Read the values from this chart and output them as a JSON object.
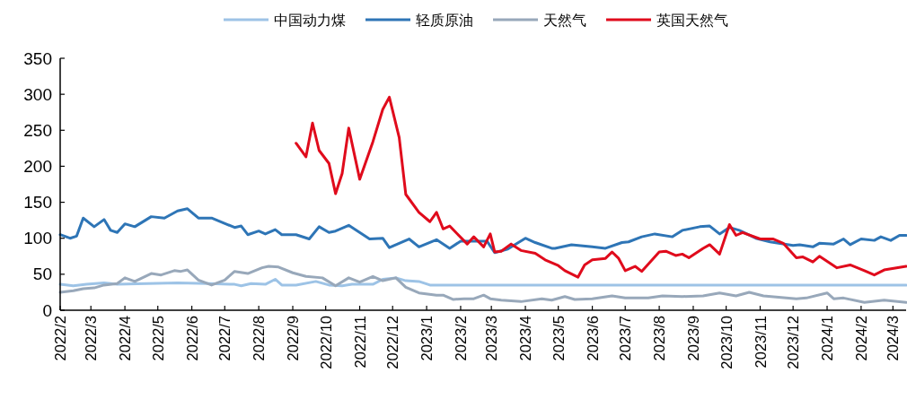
{
  "chart_data": {
    "type": "line",
    "legend": "top",
    "grid": false,
    "marker": "none",
    "line_style": "solid",
    "xlim": [
      "2022-02-01",
      "2024-03-13"
    ],
    "ylim": [
      0,
      350
    ],
    "yticks": [
      0,
      50,
      100,
      150,
      200,
      250,
      300,
      350
    ],
    "xticks": [
      {
        "value": "2022-02",
        "label": "2022/2"
      },
      {
        "value": "2022-03",
        "label": "2022/3"
      },
      {
        "value": "2022-04",
        "label": "2022/4"
      },
      {
        "value": "2022-05",
        "label": "2022/5"
      },
      {
        "value": "2022-06",
        "label": "2022/6"
      },
      {
        "value": "2022-07",
        "label": "2022/7"
      },
      {
        "value": "2022-08",
        "label": "2022/8"
      },
      {
        "value": "2022-09",
        "label": "2022/9"
      },
      {
        "value": "2022-10",
        "label": "2022/10"
      },
      {
        "value": "2022-11",
        "label": "2022/11"
      },
      {
        "value": "2022-12",
        "label": "2022/12"
      },
      {
        "value": "2023-01",
        "label": "2023/1"
      },
      {
        "value": "2023-02",
        "label": "2023/2"
      },
      {
        "value": "2023-03",
        "label": "2023/3"
      },
      {
        "value": "2023-04",
        "label": "2023/4"
      },
      {
        "value": "2023-05",
        "label": "2023/5"
      },
      {
        "value": "2023-06",
        "label": "2023/6"
      },
      {
        "value": "2023-07",
        "label": "2023/7"
      },
      {
        "value": "2023-08",
        "label": "2023/8"
      },
      {
        "value": "2023-09",
        "label": "2023/9"
      },
      {
        "value": "2023-10",
        "label": "2023/10"
      },
      {
        "value": "2023-11",
        "label": "2023/11"
      },
      {
        "value": "2023-12",
        "label": "2023/12"
      },
      {
        "value": "2024-01",
        "label": "2024/1"
      },
      {
        "value": "2024-02",
        "label": "2024/2"
      },
      {
        "value": "2024-03",
        "label": "2024/3"
      }
    ],
    "series": [
      {
        "name": "中国动力煤",
        "color": "#9dc3e6",
        "x": [
          "2022-02-01",
          "2022-02-13",
          "2022-02-25",
          "2022-03-13",
          "2022-03-25",
          "2022-05-19",
          "2022-06-16",
          "2022-07-10",
          "2022-07-16",
          "2022-07-25",
          "2022-08-07",
          "2022-08-16",
          "2022-08-22",
          "2022-09-04",
          "2022-09-22",
          "2022-10-04",
          "2022-10-16",
          "2022-10-25",
          "2022-11-13",
          "2022-11-22",
          "2022-12-04",
          "2022-12-13",
          "2022-12-25",
          "2023-01-04",
          "2024-03-13"
        ],
        "values": [
          36,
          34,
          36,
          38,
          36,
          38,
          37,
          36,
          34,
          37,
          36,
          43,
          35,
          35,
          40,
          35,
          34,
          36,
          36,
          43,
          45,
          41,
          40,
          35,
          35
        ]
      },
      {
        "name": "轻质原油",
        "color": "#2e75b6",
        "x": [
          "2022-02-01",
          "2022-02-10",
          "2022-02-16",
          "2022-02-22",
          "2022-03-04",
          "2022-03-13",
          "2022-03-19",
          "2022-03-25",
          "2022-04-01",
          "2022-04-10",
          "2022-04-25",
          "2022-05-07",
          "2022-05-19",
          "2022-05-28",
          "2022-06-07",
          "2022-06-19",
          "2022-07-10",
          "2022-07-16",
          "2022-07-22",
          "2022-08-01",
          "2022-08-07",
          "2022-08-16",
          "2022-08-22",
          "2022-09-04",
          "2022-09-16",
          "2022-09-25",
          "2022-10-04",
          "2022-10-10",
          "2022-10-22",
          "2022-11-10",
          "2022-11-22",
          "2022-11-28",
          "2022-12-16",
          "2022-12-25",
          "2023-01-10",
          "2023-01-22",
          "2023-02-01",
          "2023-02-25",
          "2023-03-04",
          "2023-03-16",
          "2023-04-01",
          "2023-04-10",
          "2023-04-25",
          "2023-04-28",
          "2023-05-13",
          "2023-06-01",
          "2023-06-13",
          "2023-06-28",
          "2023-07-04",
          "2023-07-16",
          "2023-07-28",
          "2023-08-13",
          "2023-08-22",
          "2023-09-07",
          "2023-09-16",
          "2023-09-25",
          "2023-10-04",
          "2023-10-13",
          "2023-10-28",
          "2023-11-10",
          "2023-12-01",
          "2023-12-07",
          "2023-12-19",
          "2023-12-25",
          "2024-01-07",
          "2024-01-16",
          "2024-01-22",
          "2024-02-01",
          "2024-02-13",
          "2024-02-19",
          "2024-02-28",
          "2024-03-07",
          "2024-03-13"
        ],
        "values": [
          105,
          100,
          103,
          128,
          116,
          126,
          111,
          108,
          120,
          116,
          130,
          128,
          138,
          141,
          128,
          128,
          115,
          117,
          105,
          110,
          106,
          112,
          105,
          105,
          99,
          116,
          108,
          110,
          118,
          99,
          100,
          87,
          99,
          88,
          98,
          86,
          96,
          96,
          80,
          85,
          100,
          94,
          86,
          86,
          91,
          88,
          86,
          94,
          95,
          102,
          106,
          102,
          111,
          116,
          117,
          106,
          115,
          111,
          100,
          95,
          90,
          91,
          88,
          93,
          92,
          99,
          91,
          99,
          97,
          102,
          97,
          104,
          104
        ]
      },
      {
        "name": "天然气",
        "color": "#98a8ba",
        "x": [
          "2022-02-01",
          "2022-02-13",
          "2022-02-22",
          "2022-03-04",
          "2022-03-13",
          "2022-03-25",
          "2022-04-01",
          "2022-04-10",
          "2022-04-25",
          "2022-05-04",
          "2022-05-16",
          "2022-05-22",
          "2022-05-28",
          "2022-06-07",
          "2022-06-19",
          "2022-07-01",
          "2022-07-10",
          "2022-07-22",
          "2022-08-04",
          "2022-08-10",
          "2022-08-19",
          "2022-09-01",
          "2022-09-13",
          "2022-09-28",
          "2022-10-10",
          "2022-10-22",
          "2022-11-01",
          "2022-11-13",
          "2022-11-22",
          "2022-12-04",
          "2022-12-13",
          "2022-12-25",
          "2023-01-10",
          "2023-01-16",
          "2023-01-25",
          "2023-02-04",
          "2023-02-13",
          "2023-02-22",
          "2023-02-28",
          "2023-03-10",
          "2023-03-28",
          "2023-04-16",
          "2023-04-25",
          "2023-05-07",
          "2023-05-16",
          "2023-06-01",
          "2023-06-19",
          "2023-07-01",
          "2023-07-22",
          "2023-08-04",
          "2023-08-22",
          "2023-09-10",
          "2023-09-25",
          "2023-10-10",
          "2023-10-22",
          "2023-11-04",
          "2023-12-04",
          "2023-12-13",
          "2024-01-01",
          "2024-01-07",
          "2024-01-16",
          "2024-02-04",
          "2024-02-22",
          "2024-03-13"
        ],
        "values": [
          25,
          27,
          30,
          31,
          35,
          37,
          45,
          40,
          51,
          49,
          55,
          54,
          56,
          42,
          35,
          42,
          54,
          51,
          59,
          61,
          60,
          52,
          47,
          45,
          34,
          45,
          39,
          47,
          41,
          45,
          32,
          24,
          21,
          21,
          15,
          16,
          16,
          21,
          16,
          14,
          12,
          16,
          14,
          19,
          15,
          16,
          20,
          17,
          17,
          20,
          19,
          20,
          24,
          20,
          25,
          20,
          16,
          17,
          24,
          16,
          17,
          11,
          14,
          11
        ]
      },
      {
        "name": "英国天然气",
        "color": "#e00b1c",
        "x": [
          "2022-09-04",
          "2022-09-13",
          "2022-09-19",
          "2022-09-25",
          "2022-10-04",
          "2022-10-10",
          "2022-10-16",
          "2022-10-22",
          "2022-11-01",
          "2022-11-13",
          "2022-11-22",
          "2022-11-28",
          "2022-12-07",
          "2022-12-13",
          "2022-12-25",
          "2023-01-04",
          "2023-01-10",
          "2023-01-16",
          "2023-01-22",
          "2023-02-07",
          "2023-02-13",
          "2023-02-22",
          "2023-02-28",
          "2023-03-04",
          "2023-03-10",
          "2023-03-19",
          "2023-03-28",
          "2023-04-10",
          "2023-04-19",
          "2023-05-01",
          "2023-05-07",
          "2023-05-19",
          "2023-05-25",
          "2023-06-01",
          "2023-06-13",
          "2023-06-19",
          "2023-06-25",
          "2023-07-01",
          "2023-07-10",
          "2023-07-16",
          "2023-08-01",
          "2023-08-07",
          "2023-08-16",
          "2023-08-22",
          "2023-08-28",
          "2023-09-10",
          "2023-09-16",
          "2023-09-25",
          "2023-10-04",
          "2023-10-10",
          "2023-10-16",
          "2023-11-01",
          "2023-11-13",
          "2023-11-22",
          "2023-12-04",
          "2023-12-10",
          "2023-12-19",
          "2023-12-25",
          "2024-01-10",
          "2024-01-22",
          "2024-02-04",
          "2024-02-13",
          "2024-02-22",
          "2024-03-13"
        ],
        "values": [
          232,
          213,
          260,
          222,
          204,
          162,
          190,
          253,
          182,
          234,
          279,
          296,
          240,
          161,
          136,
          123,
          136,
          113,
          117,
          92,
          102,
          88,
          106,
          81,
          82,
          92,
          83,
          79,
          70,
          62,
          55,
          46,
          63,
          70,
          72,
          81,
          72,
          55,
          61,
          54,
          81,
          82,
          76,
          78,
          73,
          86,
          91,
          78,
          119,
          104,
          108,
          99,
          99,
          93,
          73,
          74,
          67,
          75,
          59,
          63,
          55,
          49,
          56,
          61
        ]
      }
    ]
  }
}
